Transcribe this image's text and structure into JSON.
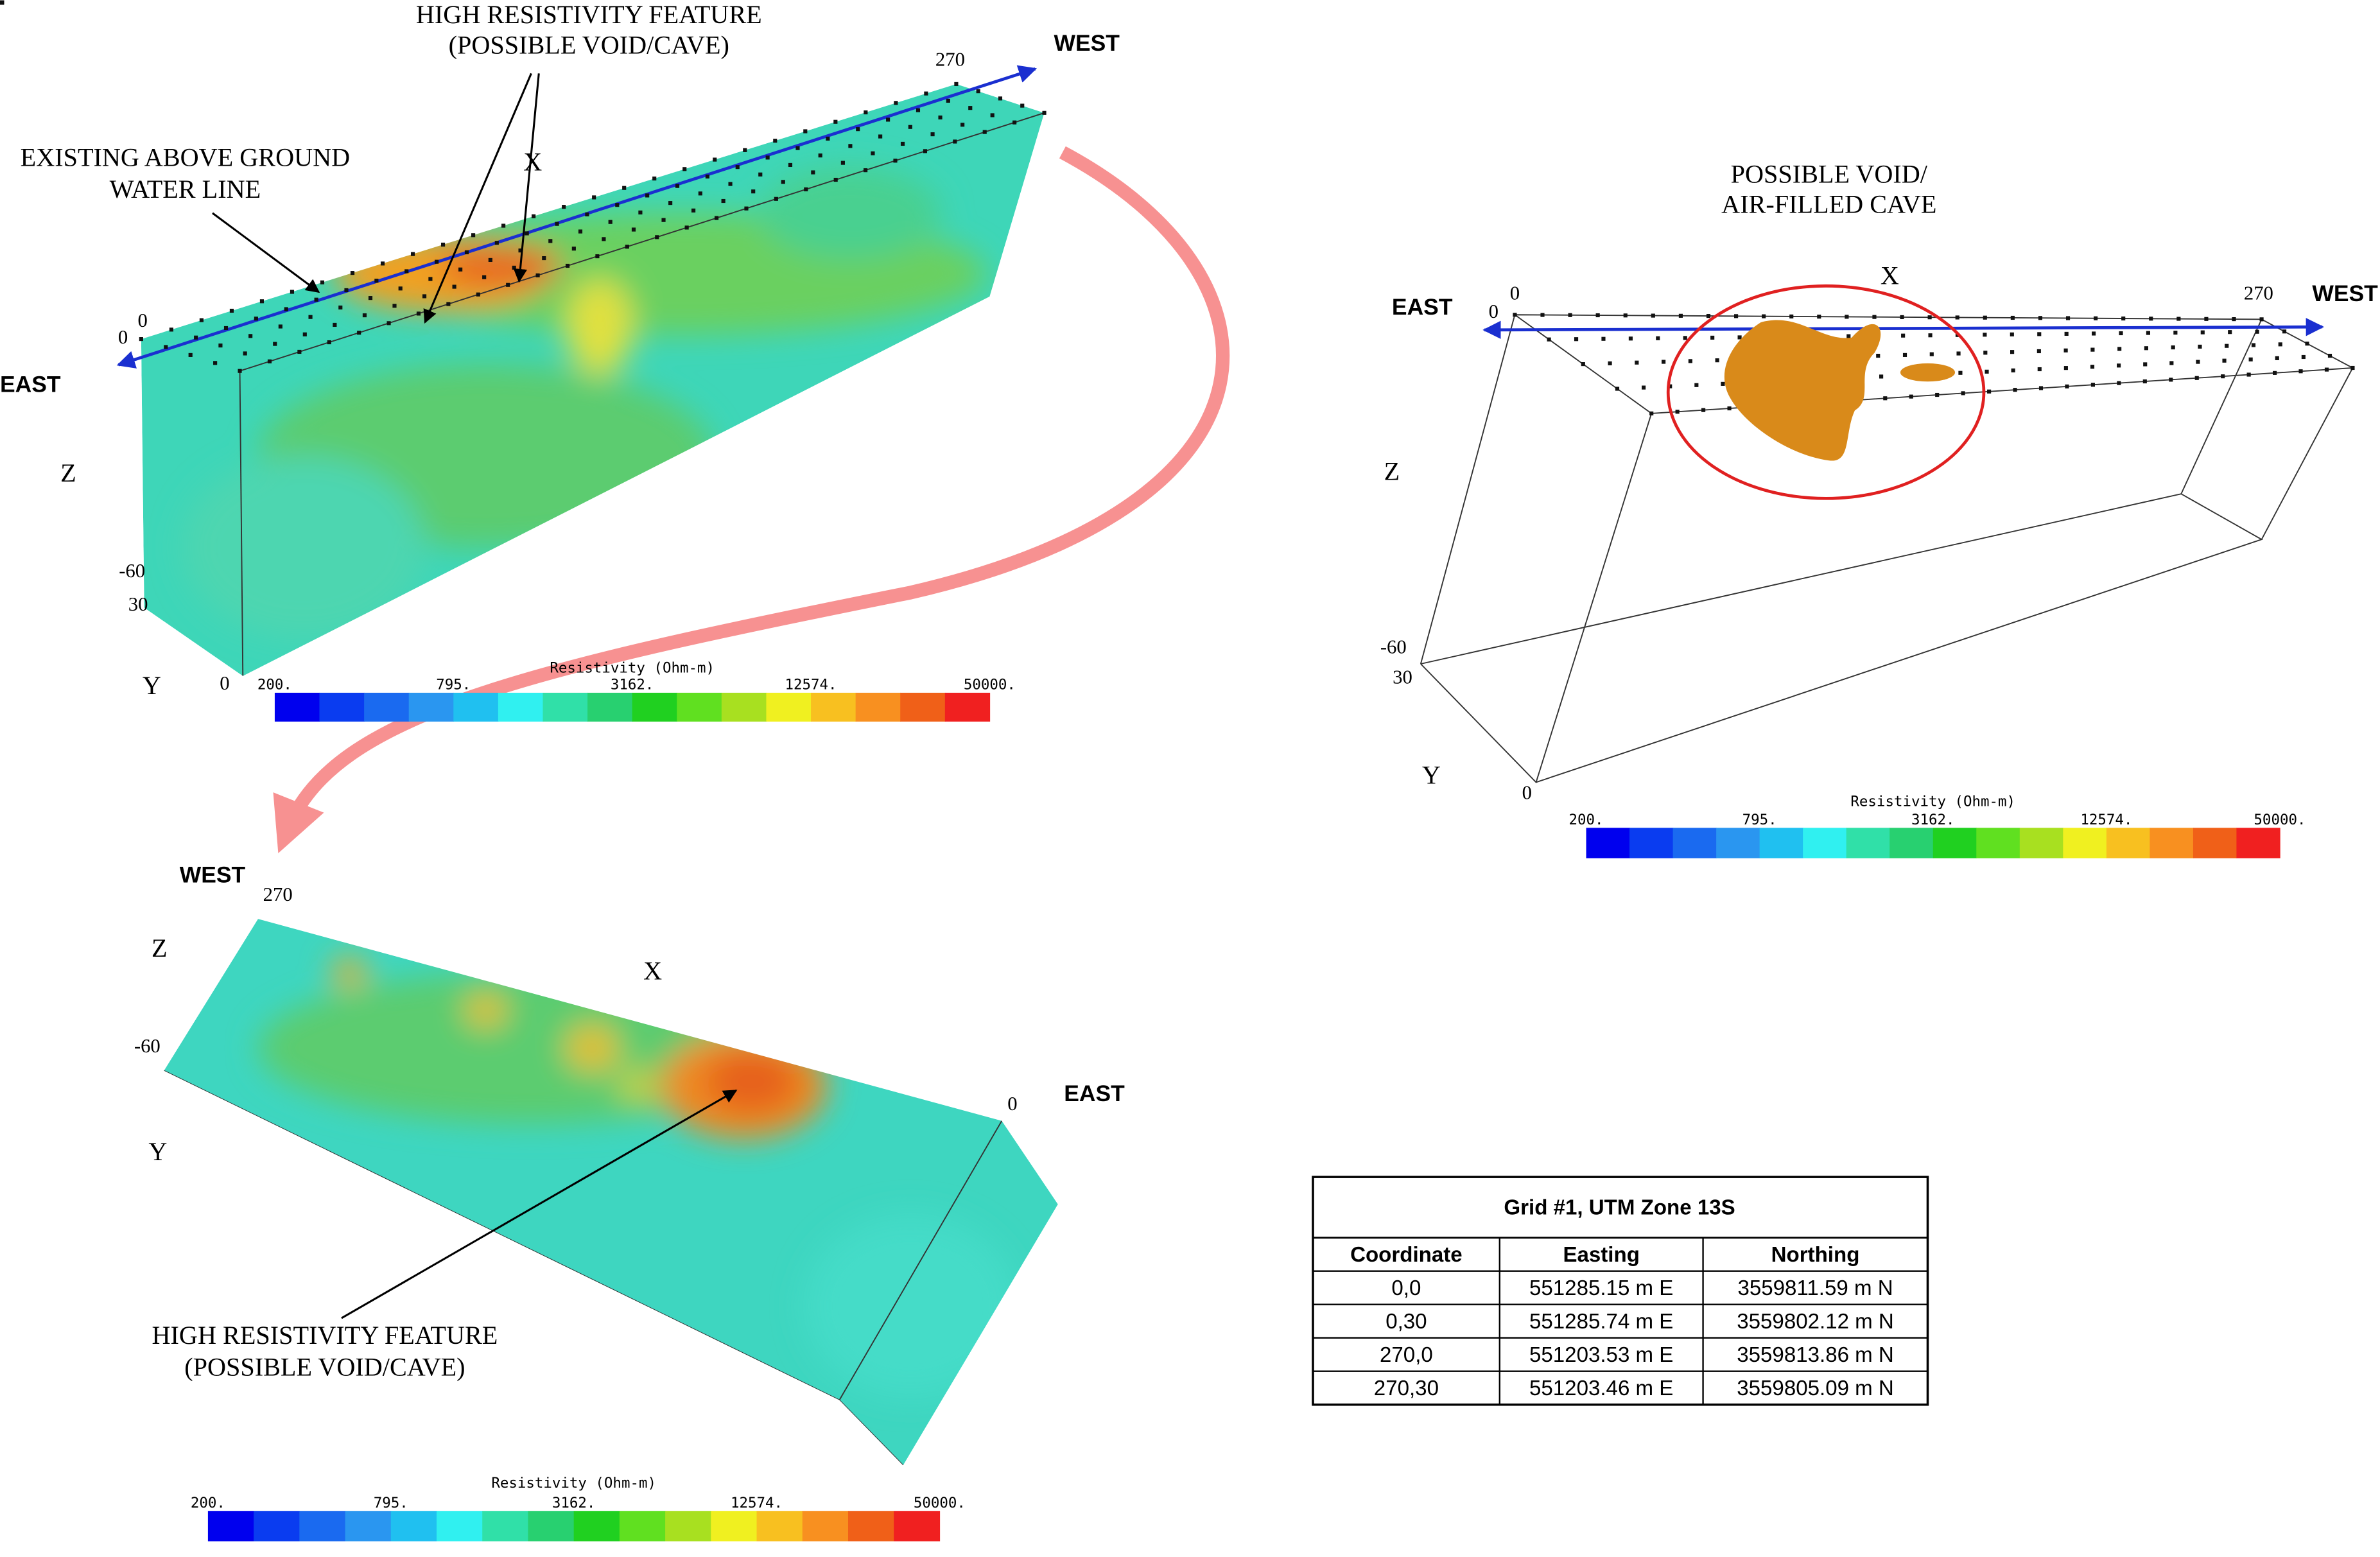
{
  "colorbar": {
    "title": "Resistivity (Ohm-m)",
    "ticks": [
      "200.",
      "795.",
      "3162.",
      "12574.",
      "50000."
    ]
  },
  "panels": [
    {
      "texts": [
        "HIGH RESISTIVITY FEATURE",
        "(POSSIBLE VOID/CAVE)",
        "EXISTING ABOVE GROUND",
        "WATER LINE",
        "WEST",
        "EAST",
        "270",
        "0",
        "0",
        "X",
        "Z",
        "-60",
        "30",
        "Y",
        "0"
      ]
    },
    {
      "texts": [
        "POSSIBLE VOID/",
        "AIR-FILLED CAVE",
        "EAST",
        "WEST",
        "0",
        "0",
        "270",
        "X",
        "Z",
        "-60",
        "30",
        "Y",
        "0"
      ]
    },
    {
      "texts": [
        "WEST",
        "270",
        "Z",
        "X",
        "-60",
        "Y",
        "0",
        "EAST",
        "HIGH RESISTIVITY FEATURE",
        "(POSSIBLE VOID/CAVE)"
      ]
    }
  ],
  "table": {
    "title": "Grid #1, UTM Zone 13S",
    "header": [
      "Coordinate",
      "Easting",
      "Northing"
    ],
    "rows": [
      [
        "0,0",
        "551285.15 m E",
        "3559811.59 m N"
      ],
      [
        "0,30",
        "551285.74 m E",
        "3559802.12 m N"
      ],
      [
        "270,0",
        "551203.53 m E",
        "3559813.86 m N"
      ],
      [
        "270,30",
        "551203.46 m E",
        "3559805.09 m N"
      ]
    ]
  }
}
